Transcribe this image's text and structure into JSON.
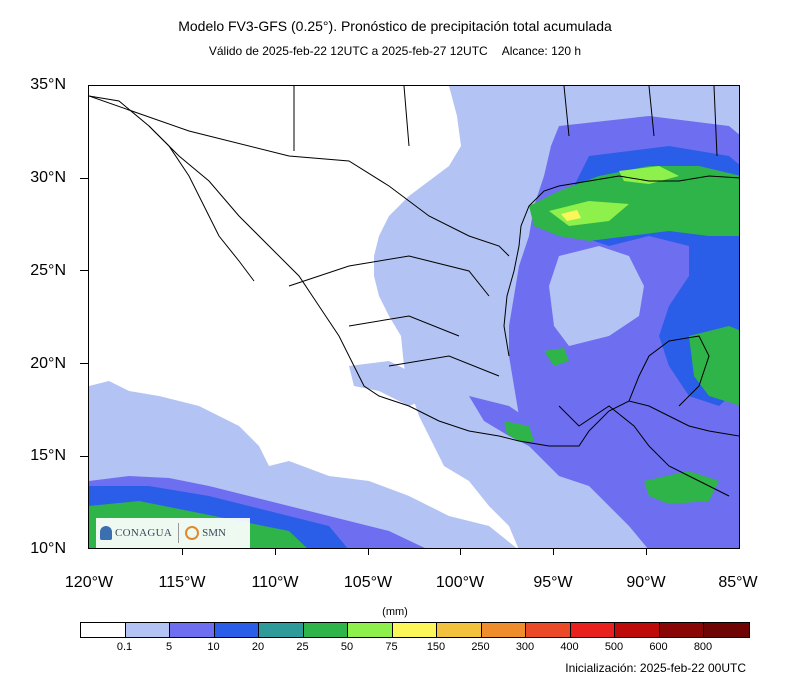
{
  "title": "Modelo FV3-GFS (0.25°). Pronóstico de precipitación total acumulada",
  "valid": "Válido de 2025-feb-22 12UTC a 2025-feb-27 12UTC",
  "range": "Alcance: 120 h",
  "lat_labels": [
    "35°N",
    "30°N",
    "25°N",
    "20°N",
    "15°N",
    "10°N"
  ],
  "lon_labels": [
    "120°W",
    "115°W",
    "110°W",
    "105°W",
    "100°W",
    "95°W",
    "90°W",
    "85°W"
  ],
  "units": "(mm)",
  "colorbar": {
    "labels": [
      "0.1",
      "5",
      "10",
      "20",
      "25",
      "50",
      "75",
      "150",
      "250",
      "300",
      "400",
      "500",
      "600",
      "800"
    ],
    "colors": [
      "#ffffff",
      "#b3c3f3",
      "#6e6ef0",
      "#2b5ee8",
      "#2f9a9a",
      "#2fb44a",
      "#8ef04a",
      "#fbf75a",
      "#f3c23c",
      "#ef8c2c",
      "#ea4a28",
      "#e8201e",
      "#bf0a0a",
      "#8a0606",
      "#6e0404"
    ]
  },
  "init": "Inicialización: 2025-feb-22 00UTC",
  "logos": {
    "left": "CONAGUA",
    "right": "SMN"
  },
  "map": {
    "lon_range": [
      -120,
      -85
    ],
    "lat_range": [
      10,
      35
    ],
    "feature_color": "#000000"
  }
}
